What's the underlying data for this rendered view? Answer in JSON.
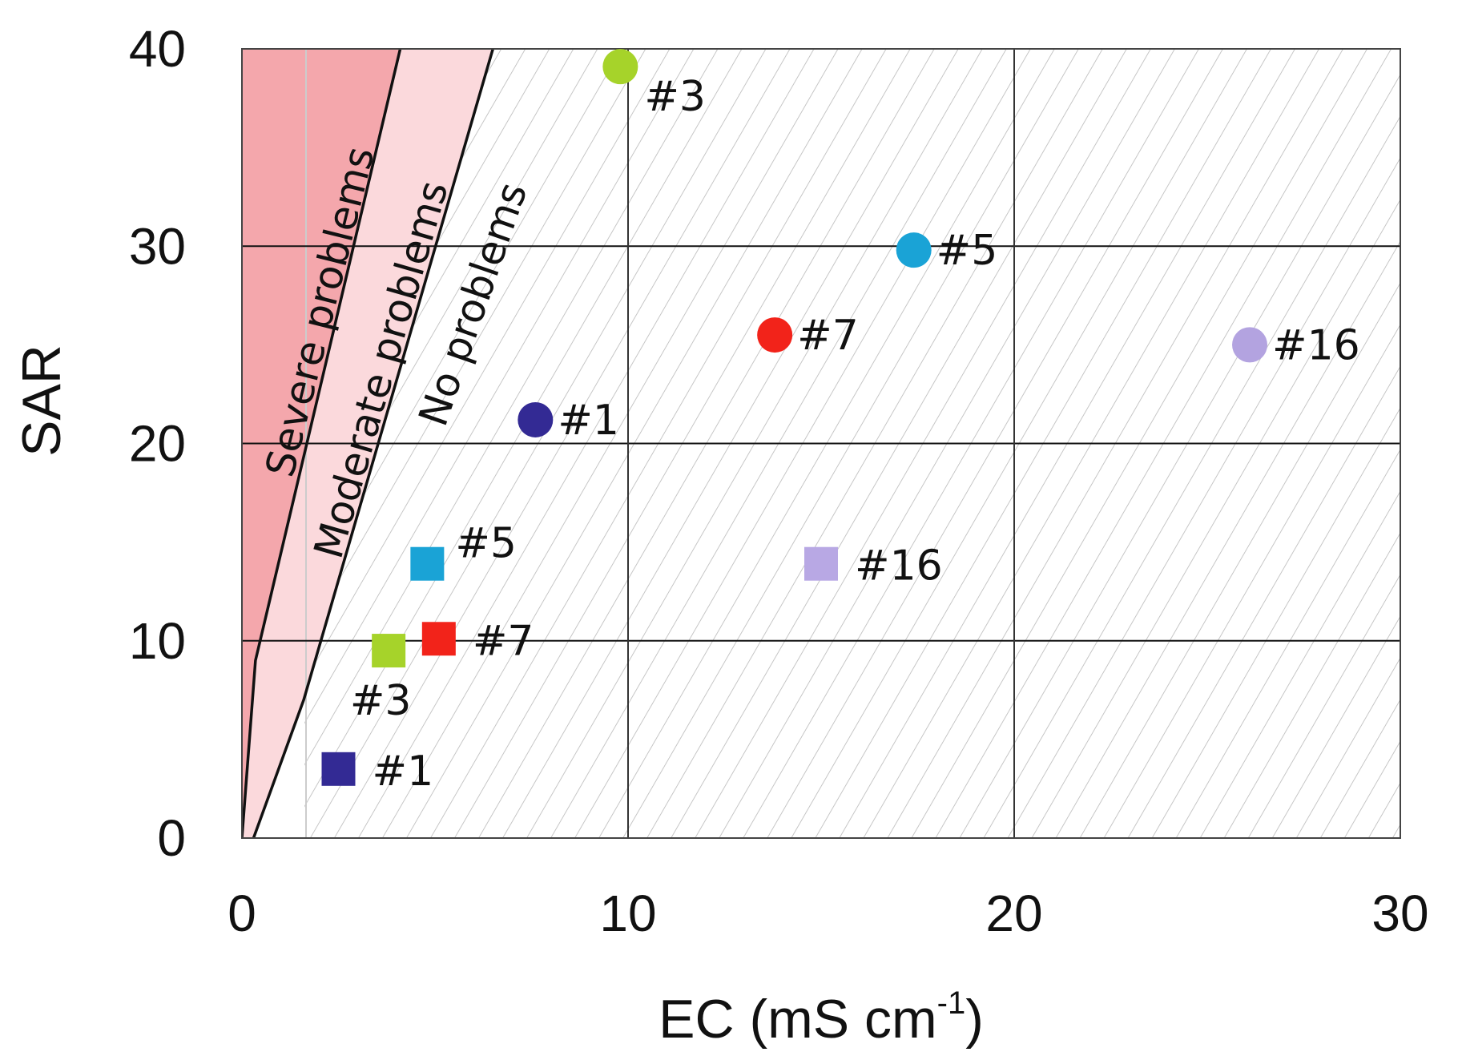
{
  "chart_data": {
    "type": "scatter",
    "xlabel": "EC (mS cm",
    "xlabel_sup": "-1",
    "xlabel_close": ")",
    "ylabel": "SAR",
    "xlim": [
      0,
      30
    ],
    "ylim": [
      0,
      40
    ],
    "x_ticks": [
      "0",
      "10",
      "20",
      "30"
    ],
    "y_ticks": [
      "0",
      "10",
      "20",
      "30",
      "40"
    ],
    "grid": true,
    "zones": [
      {
        "name": "Severe problems",
        "color": "#f4a7ac",
        "boundary": [
          [
            0,
            0
          ],
          [
            0.35,
            9
          ],
          [
            4.1,
            40
          ]
        ]
      },
      {
        "name": "Moderate problems",
        "color": "#fbd9dc",
        "boundary": [
          [
            0.3,
            0
          ],
          [
            1.6,
            7
          ],
          [
            6.5,
            40
          ]
        ]
      },
      {
        "name": "No problems",
        "color": "#ffffff"
      }
    ],
    "series": [
      {
        "name": "circles",
        "marker": "circle",
        "points": [
          {
            "label": "#3",
            "x": 9.8,
            "y": 39.1,
            "color": "#a6d32a"
          },
          {
            "label": "#5",
            "x": 17.4,
            "y": 29.8,
            "color": "#1aa3d6"
          },
          {
            "label": "#7",
            "x": 13.8,
            "y": 25.5,
            "color": "#f2231a"
          },
          {
            "label": "#16",
            "x": 26.1,
            "y": 25.0,
            "color": "#b3a3e0"
          },
          {
            "label": "#1",
            "x": 7.6,
            "y": 21.2,
            "color": "#332a94"
          }
        ]
      },
      {
        "name": "squares",
        "marker": "square",
        "points": [
          {
            "label": "#5",
            "x": 4.8,
            "y": 13.9,
            "color": "#1aa3d6"
          },
          {
            "label": "#16",
            "x": 15.0,
            "y": 13.9,
            "color": "#b8a8e4"
          },
          {
            "label": "#7",
            "x": 5.1,
            "y": 10.1,
            "color": "#f2231a"
          },
          {
            "label": "#3",
            "x": 3.8,
            "y": 9.5,
            "color": "#a6d32a"
          },
          {
            "label": "#1",
            "x": 2.5,
            "y": 3.5,
            "color": "#332a94"
          }
        ]
      }
    ]
  }
}
